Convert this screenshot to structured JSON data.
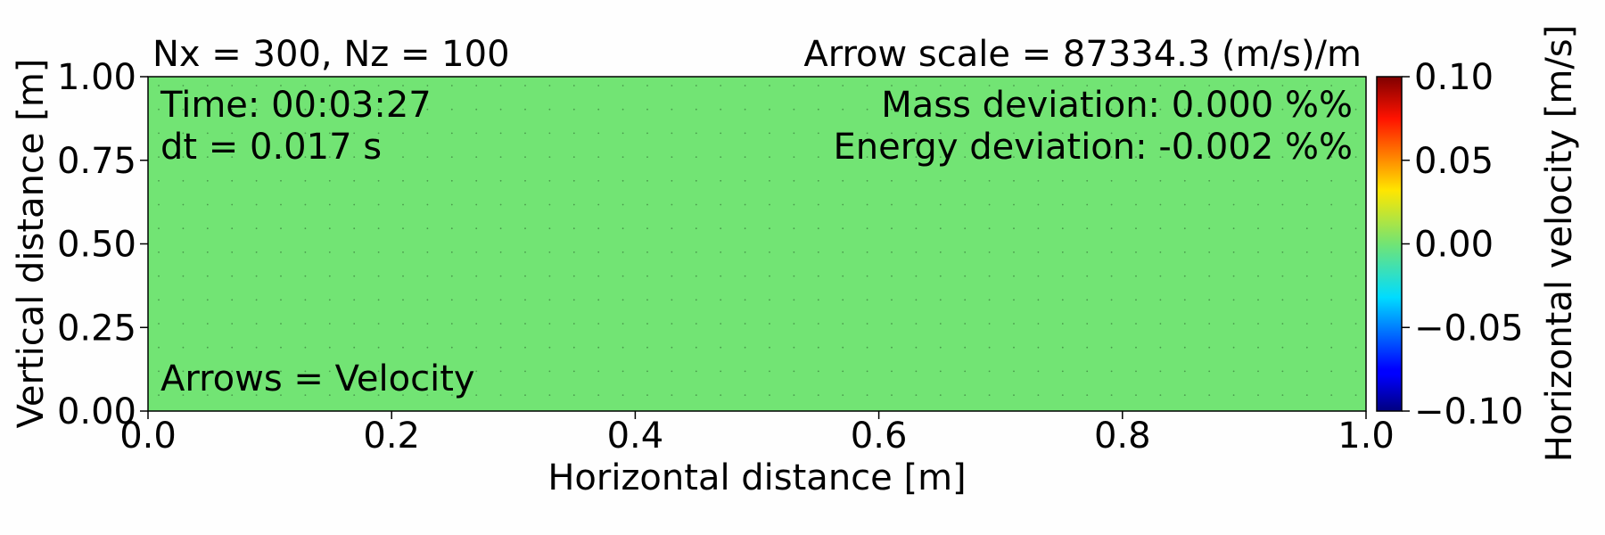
{
  "chart_data": {
    "type": "heatmap",
    "title_left": "Nx = 300, Nz = 100",
    "title_right": "Arrow scale = 87334.3 (m/s)/m",
    "xlabel": "Horizontal distance [m]",
    "ylabel": "Vertical distance [m]",
    "xlim": [
      0.0,
      1.0
    ],
    "ylim": [
      0.0,
      1.0
    ],
    "x_ticks": [
      "0.0",
      "0.2",
      "0.4",
      "0.6",
      "0.8",
      "1.0"
    ],
    "y_ticks": [
      "0.00",
      "0.25",
      "0.50",
      "0.75",
      "1.00"
    ],
    "annotations": {
      "time": "Time: 00:03:27",
      "dt": "dt = 0.017 s",
      "mass": "Mass deviation: 0.000 %%",
      "energy": "Energy deviation: -0.002 %%",
      "arrows": "Arrows = Velocity"
    },
    "field_value": 0.0,
    "field_color": "#72e474",
    "colorbar": {
      "label": "Horizontal velocity [m/s]",
      "range": [
        -0.1,
        0.1
      ],
      "ticks": [
        "0.10",
        "0.05",
        "0.00",
        "−0.05",
        "−0.10"
      ],
      "colormap": "jet"
    }
  }
}
